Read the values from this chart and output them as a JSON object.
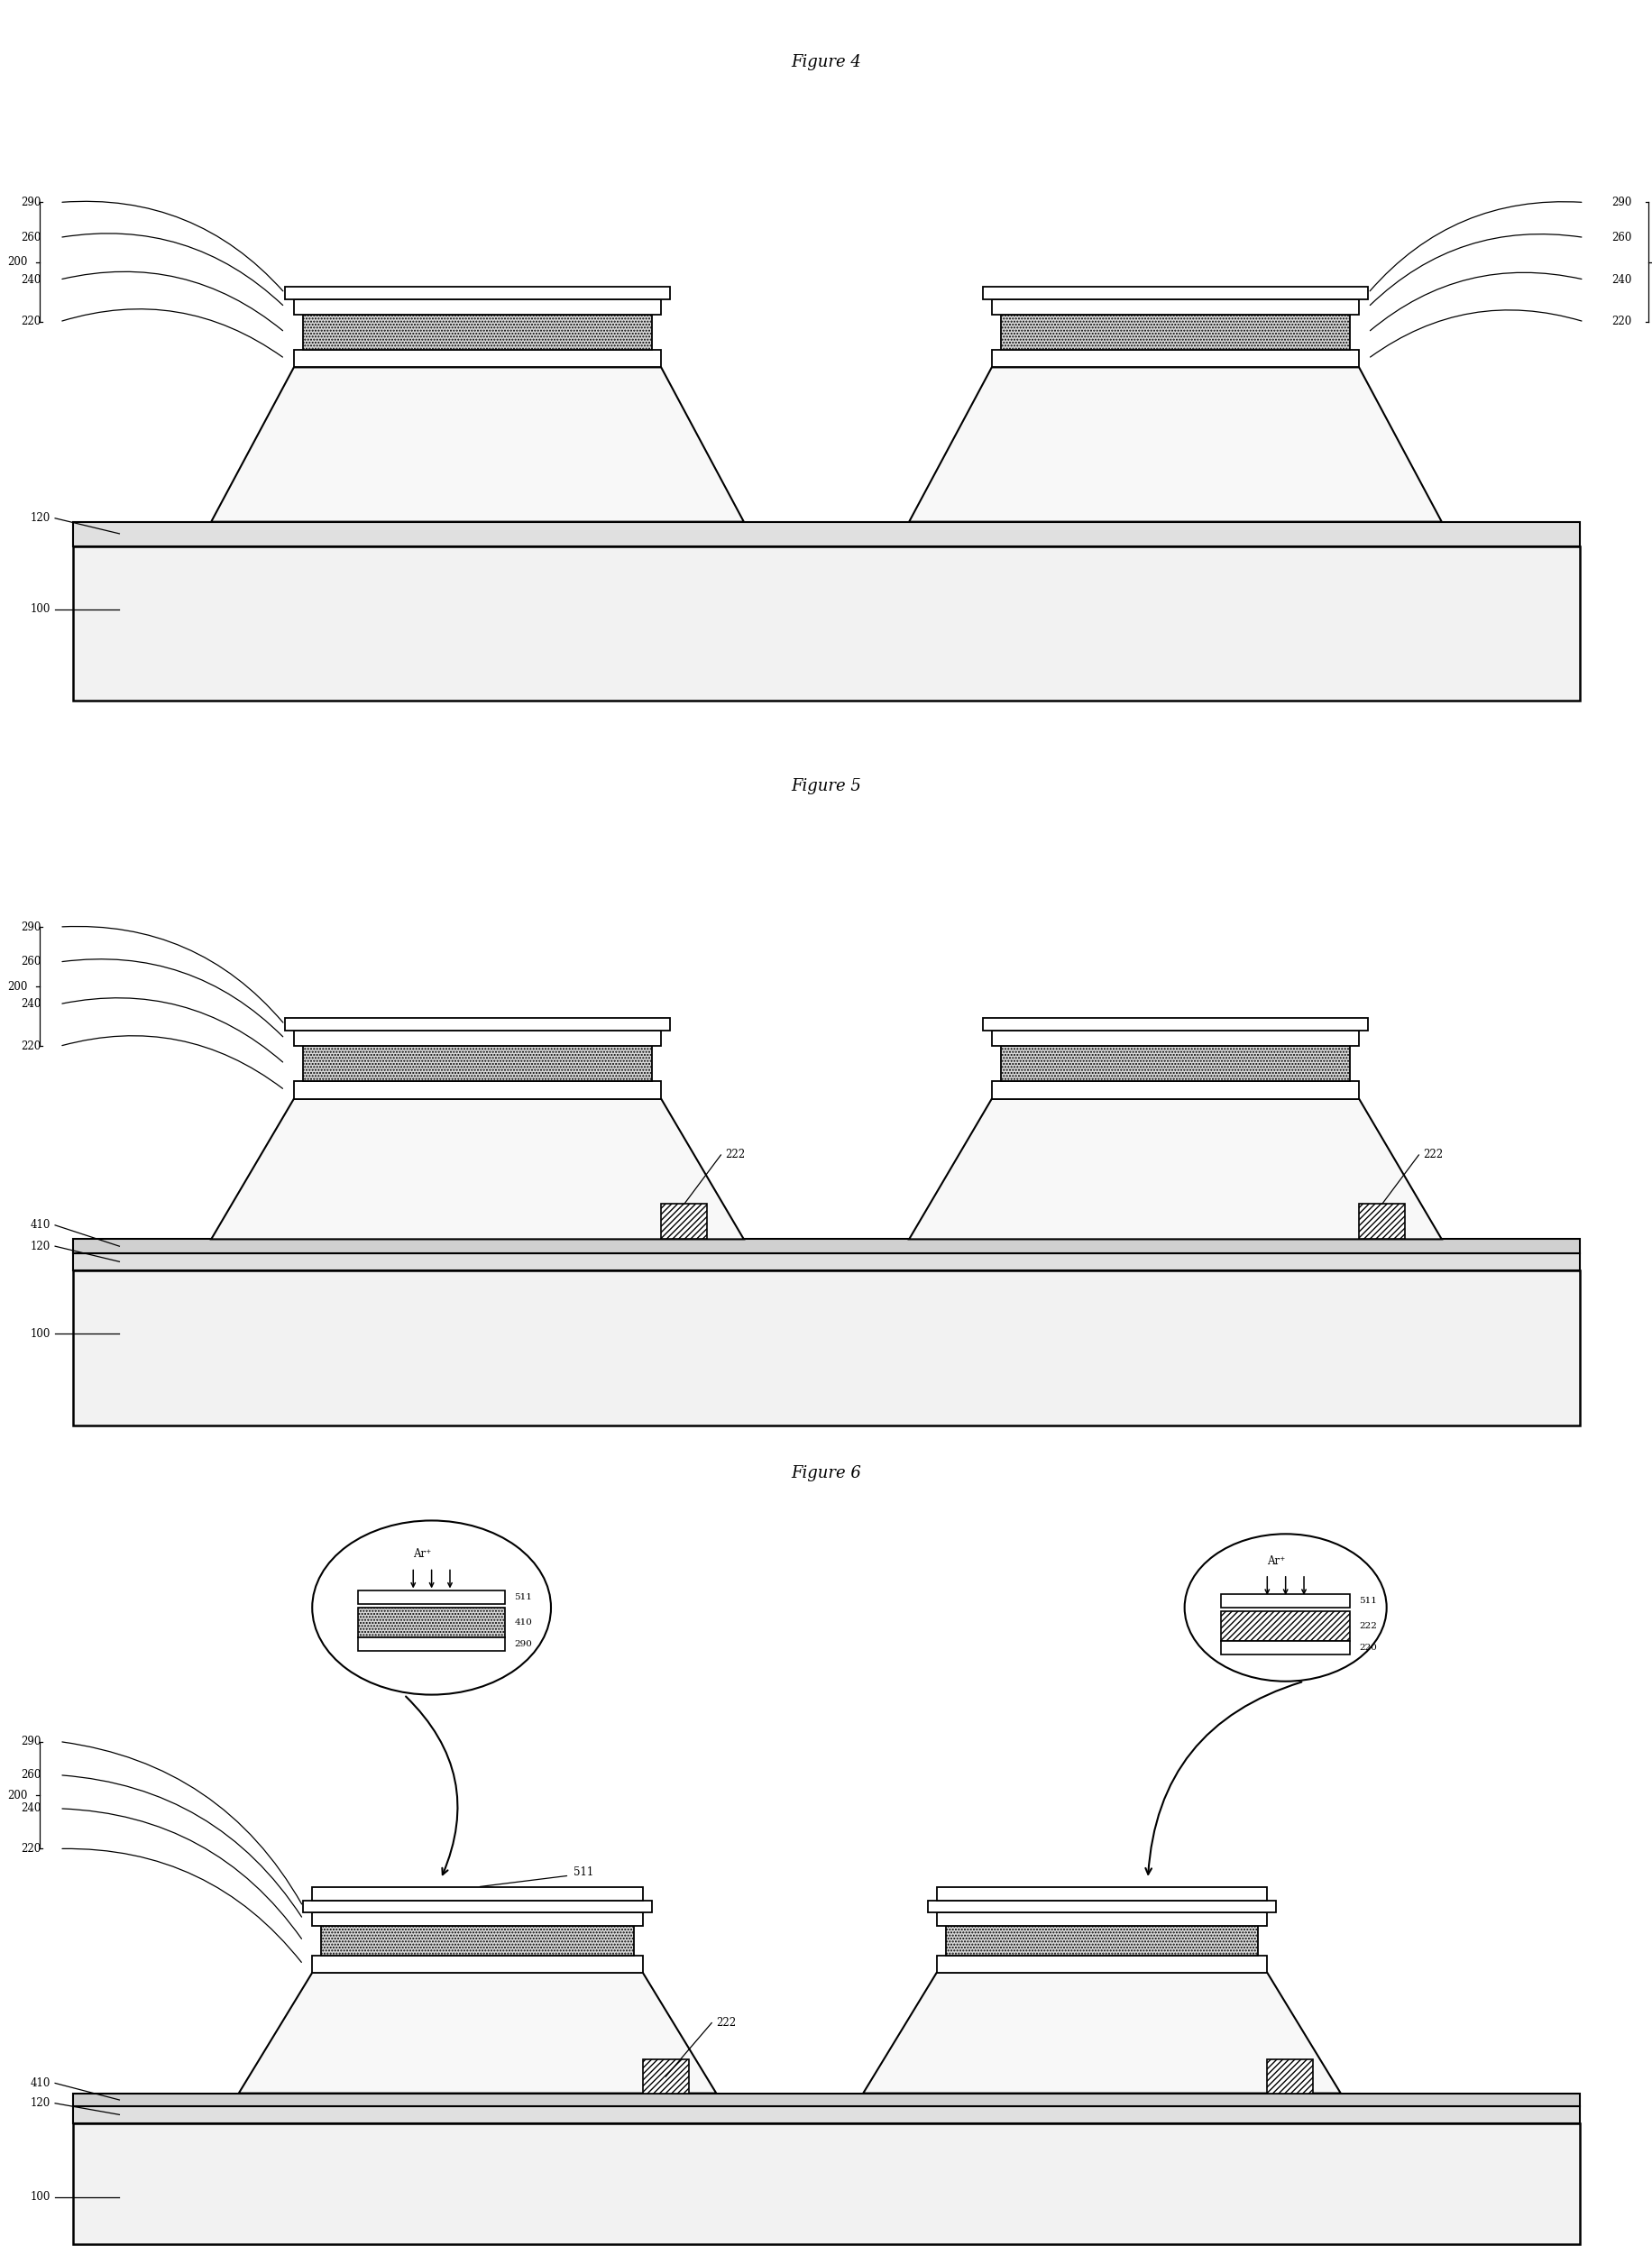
{
  "title4": "Figure 4",
  "title5": "Figure 5",
  "title6": "Figure 6",
  "bg_color": "#ffffff"
}
